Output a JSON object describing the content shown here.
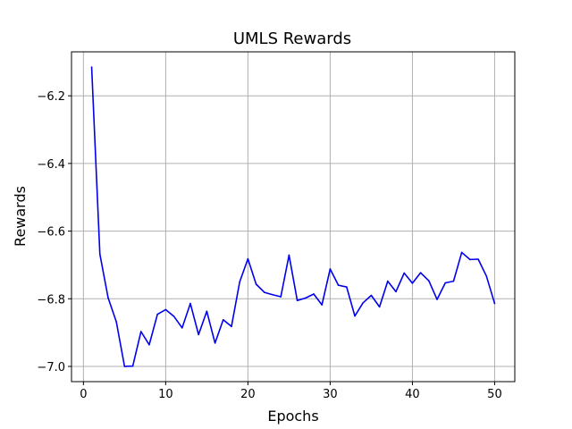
{
  "chart_data": {
    "type": "line",
    "title": "UMLS Rewards",
    "xlabel": "Epochs",
    "ylabel": "Rewards",
    "xlim": [
      -1.45,
      52.45
    ],
    "ylim": [
      -7.045,
      -6.07
    ],
    "xticks": [
      0,
      10,
      20,
      30,
      40,
      50
    ],
    "yticks": [
      -7.0,
      -6.8,
      -6.6,
      -6.4,
      -6.2
    ],
    "xtick_labels": [
      "0",
      "10",
      "20",
      "30",
      "40",
      "50"
    ],
    "ytick_labels": [
      "−7.0",
      "−6.8",
      "−6.6",
      "−6.4",
      "−6.2"
    ],
    "grid": true,
    "series": [
      {
        "color": "#0000ee",
        "x": [
          1,
          2,
          3,
          4,
          5,
          6,
          7,
          8,
          9,
          10,
          11,
          12,
          13,
          14,
          15,
          16,
          17,
          18,
          19,
          20,
          21,
          22,
          23,
          24,
          25,
          26,
          27,
          28,
          29,
          30,
          31,
          32,
          33,
          34,
          35,
          36,
          37,
          38,
          39,
          40,
          41,
          42,
          43,
          44,
          45,
          46,
          47,
          48,
          49,
          50
        ],
        "values": [
          -6.115,
          -6.668,
          -6.797,
          -6.868,
          -7.0,
          -6.999,
          -6.897,
          -6.936,
          -6.846,
          -6.832,
          -6.852,
          -6.886,
          -6.814,
          -6.906,
          -6.837,
          -6.931,
          -6.862,
          -6.882,
          -6.75,
          -6.682,
          -6.757,
          -6.781,
          -6.788,
          -6.794,
          -6.671,
          -6.805,
          -6.798,
          -6.786,
          -6.818,
          -6.712,
          -6.76,
          -6.765,
          -6.851,
          -6.812,
          -6.79,
          -6.824,
          -6.748,
          -6.779,
          -6.724,
          -6.754,
          -6.723,
          -6.747,
          -6.802,
          -6.753,
          -6.748,
          -6.663,
          -6.684,
          -6.683,
          -6.733,
          -6.814
        ]
      }
    ]
  }
}
